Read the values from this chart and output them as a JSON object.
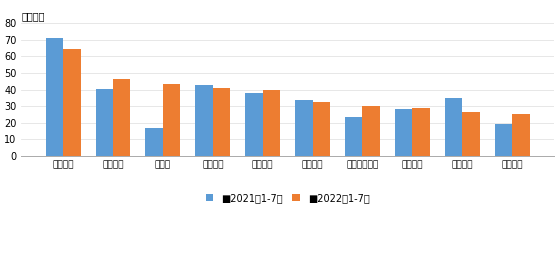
{
  "categories": [
    "一汽大众",
    "上汽大众",
    "比亚迪",
    "东风有限",
    "上汽通用",
    "广汽丰田",
    "上汽通用五菱",
    "吉利控股",
    "一汽丰田",
    "长安汽车"
  ],
  "series_2021": [
    71,
    40.5,
    16.5,
    43,
    38,
    33.5,
    23.5,
    28,
    35,
    19
  ],
  "series_2022": [
    64.5,
    46.5,
    43.5,
    41,
    39.5,
    32.5,
    30,
    29,
    26.5,
    25.5
  ],
  "color_2021": "#5B9BD5",
  "color_2022": "#ED7D31",
  "label_2021": "■2021年1-7月",
  "label_2022": "■2022年1-7月",
  "ylabel": "（万辆）",
  "ylim": [
    0,
    80
  ],
  "yticks": [
    0,
    10,
    20,
    30,
    40,
    50,
    60,
    70,
    80
  ],
  "background_color": "#ffffff",
  "bar_width": 0.35
}
